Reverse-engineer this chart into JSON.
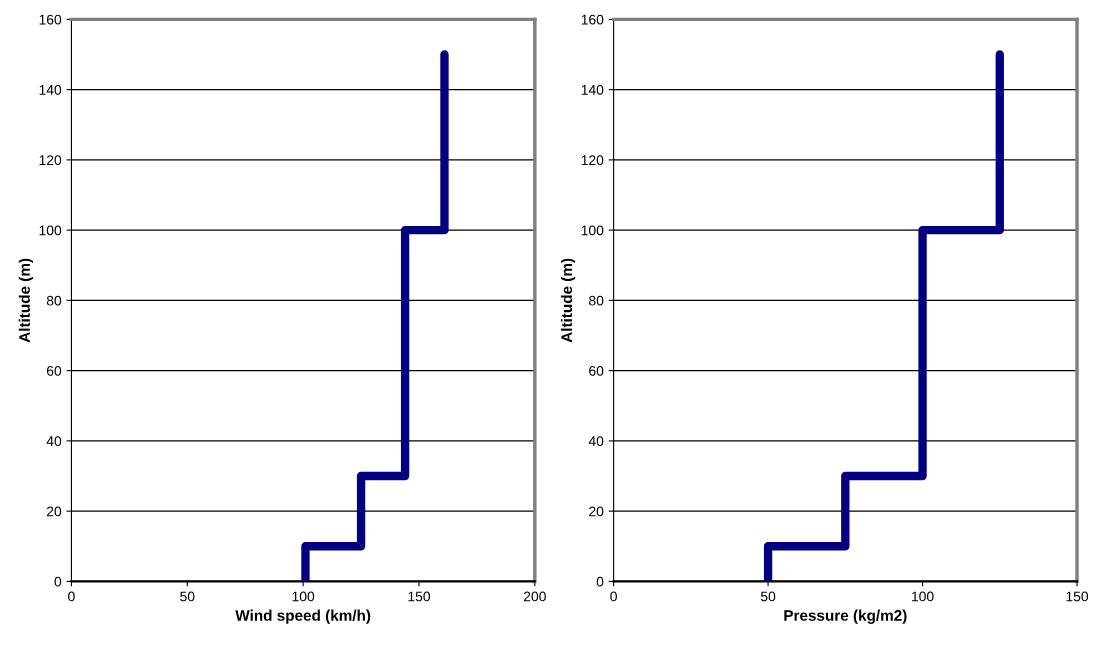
{
  "chart_data": [
    {
      "type": "line",
      "xlabel": "Wind speed (km/h)",
      "ylabel": "Altitude (m)",
      "xlim": [
        0,
        200
      ],
      "xticks": [
        0,
        50,
        100,
        150,
        200
      ],
      "ylim": [
        0,
        160
      ],
      "yticks": [
        0,
        20,
        40,
        60,
        80,
        100,
        120,
        140,
        160
      ],
      "grid": "y",
      "series": [
        {
          "color": "#000080",
          "x": [
            101,
            101,
            125,
            125,
            144,
            144,
            161,
            161
          ],
          "values": [
            0,
            10,
            10,
            30,
            30,
            100,
            100,
            150
          ]
        }
      ]
    },
    {
      "type": "line",
      "xlabel": "Pressure (kg/m2)",
      "ylabel": "Altitude (m)",
      "xlim": [
        0,
        150
      ],
      "xticks": [
        0,
        50,
        100,
        150
      ],
      "ylim": [
        0,
        160
      ],
      "yticks": [
        0,
        20,
        40,
        60,
        80,
        100,
        120,
        140,
        160
      ],
      "grid": "y",
      "series": [
        {
          "color": "#000080",
          "x": [
            50,
            50,
            75,
            75,
            100,
            100,
            125,
            125
          ],
          "values": [
            0,
            10,
            10,
            30,
            30,
            100,
            100,
            150
          ]
        }
      ]
    }
  ]
}
